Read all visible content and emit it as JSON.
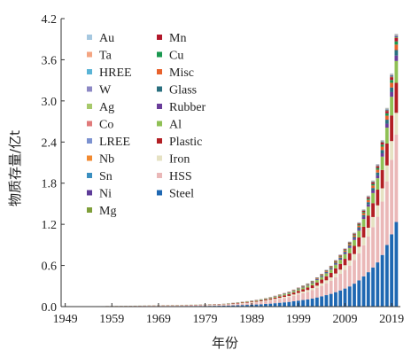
{
  "chart_data": {
    "type": "bar",
    "stacked": true,
    "xlabel": "年份",
    "ylabel": "物质存量/亿t",
    "ylim": [
      0,
      4.2
    ],
    "yticks": [
      "0.0",
      "0.6",
      "1.2",
      "1.8",
      "2.4",
      "3.0",
      "3.6",
      "4.2"
    ],
    "xtick_labels": [
      "1949",
      "1959",
      "1969",
      "1979",
      "1989",
      "1999",
      "2009",
      "2019"
    ],
    "x": [
      1949,
      1950,
      1951,
      1952,
      1953,
      1954,
      1955,
      1956,
      1957,
      1958,
      1959,
      1960,
      1961,
      1962,
      1963,
      1964,
      1965,
      1966,
      1967,
      1968,
      1969,
      1970,
      1971,
      1972,
      1973,
      1974,
      1975,
      1976,
      1977,
      1978,
      1979,
      1980,
      1981,
      1982,
      1983,
      1984,
      1985,
      1986,
      1987,
      1988,
      1989,
      1990,
      1991,
      1992,
      1993,
      1994,
      1995,
      1996,
      1997,
      1998,
      1999,
      2000,
      2001,
      2002,
      2003,
      2004,
      2005,
      2006,
      2007,
      2008,
      2009,
      2010,
      2011,
      2012,
      2013,
      2014,
      2015,
      2016,
      2017,
      2018,
      2019,
      2020
    ],
    "totals": [
      0.004,
      0.004,
      0.005,
      0.005,
      0.006,
      0.006,
      0.007,
      0.008,
      0.008,
      0.009,
      0.01,
      0.011,
      0.012,
      0.013,
      0.014,
      0.015,
      0.016,
      0.017,
      0.019,
      0.02,
      0.022,
      0.023,
      0.025,
      0.026,
      0.027,
      0.029,
      0.03,
      0.031,
      0.032,
      0.033,
      0.034,
      0.036,
      0.038,
      0.04,
      0.044,
      0.05,
      0.056,
      0.063,
      0.072,
      0.08,
      0.09,
      0.1,
      0.11,
      0.125,
      0.14,
      0.16,
      0.18,
      0.2,
      0.22,
      0.25,
      0.28,
      0.31,
      0.34,
      0.38,
      0.43,
      0.48,
      0.54,
      0.6,
      0.68,
      0.76,
      0.85,
      0.95,
      1.08,
      1.23,
      1.42,
      1.62,
      1.84,
      2.08,
      2.43,
      2.9,
      3.4,
      3.98
    ],
    "series": [
      {
        "name": "Au",
        "color": "#a6c8e0",
        "share": 0.001
      },
      {
        "name": "Ta",
        "color": "#f4a582",
        "share": 0.001
      },
      {
        "name": "HREE",
        "color": "#5ab4d6",
        "share": 0.001
      },
      {
        "name": "W",
        "color": "#8c88c4",
        "share": 0.001
      },
      {
        "name": "Ag",
        "color": "#a7c96b",
        "share": 0.001
      },
      {
        "name": "Co",
        "color": "#e07a7a",
        "share": 0.001
      },
      {
        "name": "LREE",
        "color": "#7c92d0",
        "share": 0.001
      },
      {
        "name": "Nb",
        "color": "#f28a30",
        "share": 0.001
      },
      {
        "name": "Sn",
        "color": "#3a8fc0",
        "share": 0.002
      },
      {
        "name": "Ni",
        "color": "#5e3c99",
        "share": 0.003
      },
      {
        "name": "Mg",
        "color": "#7f9f3a",
        "share": 0.003
      },
      {
        "name": "Mn",
        "color": "#b2182b",
        "share": 0.012
      },
      {
        "name": "Cu",
        "color": "#1a9850",
        "share": 0.012
      },
      {
        "name": "Misc",
        "color": "#e8622c",
        "share": 0.02
      },
      {
        "name": "Glass",
        "color": "#2a6f7f",
        "share": 0.02
      },
      {
        "name": "Rubber",
        "color": "#6a3d9a",
        "share": 0.02
      },
      {
        "name": "Al",
        "color": "#8fc055",
        "share": 0.08
      },
      {
        "name": "Plastic",
        "color": "#b21f24",
        "share": 0.11
      },
      {
        "name": "Iron",
        "color": "#e6e2c3",
        "share": 0.08
      },
      {
        "name": "HSS",
        "color": "#eab8b8",
        "share": 0.32
      },
      {
        "name": "Steel",
        "color": "#1f68b2",
        "share": 0.31
      }
    ],
    "legend_placement": "top-left",
    "grid": false
  }
}
